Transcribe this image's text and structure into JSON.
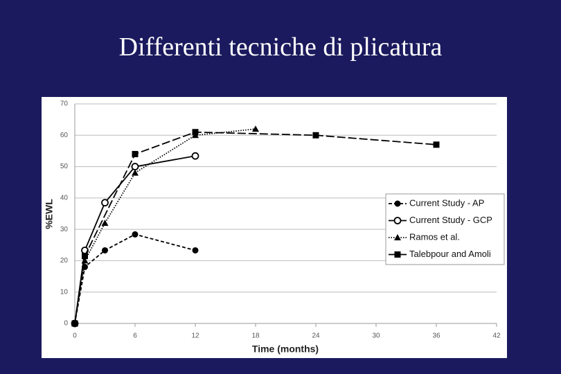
{
  "chart_data": {
    "type": "line",
    "title": "Differenti tecniche di plicatura",
    "x_label": "Time (months)",
    "y_label": "%EWL",
    "xlim": [
      0,
      42
    ],
    "xticks": [
      0,
      6,
      12,
      18,
      24,
      30,
      36,
      42
    ],
    "ylim": [
      0,
      70
    ],
    "yticks": [
      0,
      10,
      20,
      30,
      40,
      50,
      60,
      70
    ],
    "grid": true,
    "legend": "right",
    "series": [
      {
        "name": "Current Study - AP",
        "color": "#000000",
        "dash": "5,3",
        "marker": "filled-circle",
        "x": [
          0,
          1,
          3,
          6,
          12
        ],
        "values": [
          0,
          18,
          23.3,
          28.4,
          23.3
        ]
      },
      {
        "name": "Current Study - GCP",
        "color": "#000000",
        "dash": "none",
        "marker": "open-circle",
        "x": [
          0,
          1,
          3,
          6,
          12
        ],
        "values": [
          0,
          23.3,
          38.5,
          50,
          53.4
        ]
      },
      {
        "name": "Ramos et al.",
        "color": "#000000",
        "dash": "1.5,2",
        "marker": "triangle",
        "x": [
          0,
          1,
          3,
          6,
          12,
          18
        ],
        "values": [
          0,
          20,
          32,
          48,
          60,
          62
        ]
      },
      {
        "name": "Talebpour and Amoli",
        "color": "#000000",
        "dash": "12,4",
        "marker": "square",
        "x": [
          0,
          1,
          6,
          12,
          24,
          36
        ],
        "values": [
          0,
          21.5,
          54,
          61,
          60,
          57
        ]
      }
    ]
  }
}
